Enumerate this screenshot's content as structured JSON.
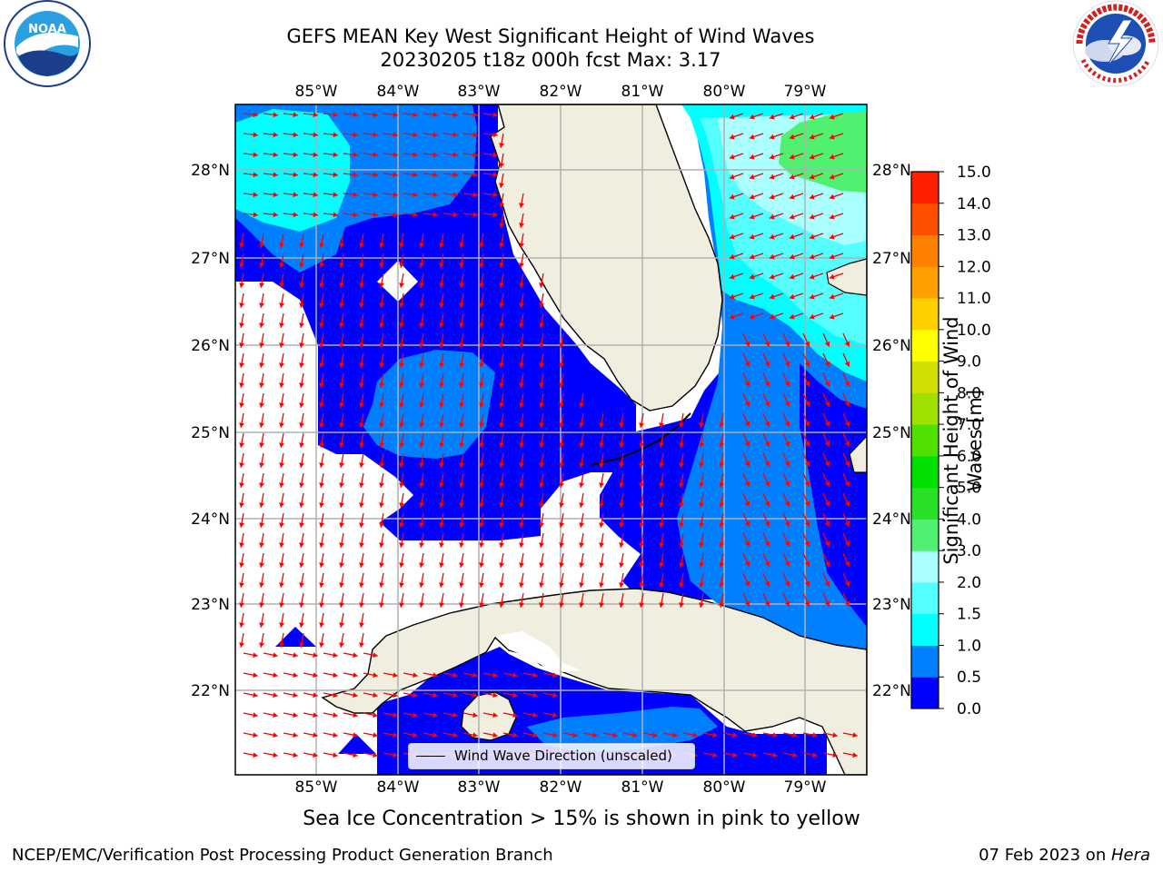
{
  "title_line1": "GEFS MEAN Key West Significant Height of Wind Waves",
  "title_line2": "20230205 t18z 000h fcst   Max: 3.17",
  "lon_ticks": [
    "85°W",
    "84°W",
    "83°W",
    "82°W",
    "81°W",
    "80°W",
    "79°W"
  ],
  "lat_ticks": [
    "28°N",
    "27°N",
    "26°N",
    "25°N",
    "24°N",
    "23°N",
    "22°N"
  ],
  "legend_label": "Wind Wave Direction (unscaled)",
  "colorbar": {
    "label": "Significant Height of Wind Waves [m]",
    "ticks": [
      "0.0",
      "0.5",
      "1.0",
      "1.5",
      "2.0",
      "3.0",
      "4.0",
      "5.0",
      "6.0",
      "7.0",
      "8.0",
      "9.0",
      "10.0",
      "11.0",
      "12.0",
      "13.0",
      "14.0",
      "15.0"
    ],
    "colors": [
      "#0000ff",
      "#0080ff",
      "#00ffff",
      "#55ffff",
      "#aaffff",
      "#50f070",
      "#28e028",
      "#00e000",
      "#50e000",
      "#a0e000",
      "#d0e000",
      "#ffff00",
      "#ffd000",
      "#ffa000",
      "#ff8000",
      "#ff5000",
      "#ff2000",
      "#ff0000"
    ]
  },
  "footnote": "Sea Ice Concentration > 15% is shown in pink to yellow",
  "credit_left": "NCEP/EMC/Verification Post Processing Product Generation Branch",
  "credit_date": "07 Feb 2023 on ",
  "credit_machine": "Hera",
  "logo_left_text": "NOAA",
  "logo_right_text": "NATIONAL WEATHER SERVICE",
  "colors": {
    "land": "#efeedf",
    "arrow": "#ff0000",
    "grid": "#b0b0b0"
  }
}
